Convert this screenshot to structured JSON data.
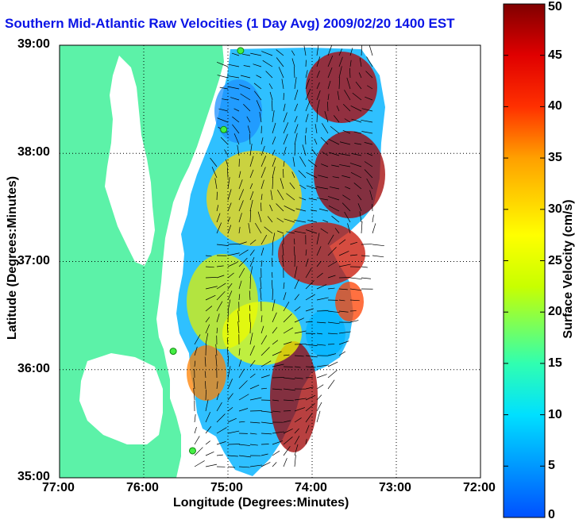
{
  "chart_data": {
    "type": "heatmap",
    "title": "Southern Mid-Atlantic Raw Velocities (1 Day Avg) 2009/02/20 1400 EST",
    "xlabel": "Longitude (Degrees:Minutes)",
    "ylabel": "Latitude (Degrees:Minutes)",
    "colorbar_label": "Surface Velocity (cm/s)",
    "x_ticks": [
      "77:00",
      "76:00",
      "75:00",
      "74:00",
      "73:00",
      "72:00"
    ],
    "y_ticks": [
      "39:00",
      "38:00",
      "37:00",
      "36:00",
      "35:00"
    ],
    "x_range": [
      -77,
      -72
    ],
    "y_range": [
      35,
      39
    ],
    "color_range": [
      0,
      50
    ],
    "colorbar_ticks": [
      "50",
      "45",
      "40",
      "35",
      "30",
      "25",
      "20",
      "15",
      "10",
      "5",
      "0"
    ],
    "grid": true,
    "colors": {
      "land": "#5cf2a8",
      "water": "#ffffff",
      "title": "#0a14e6",
      "station": "#44ee44"
    },
    "stations": [
      {
        "lon": -74.85,
        "lat": 38.95
      },
      {
        "lon": -75.05,
        "lat": 38.22
      },
      {
        "lon": -75.65,
        "lat": 36.17
      },
      {
        "lon": -75.42,
        "lat": 35.25
      }
    ]
  }
}
